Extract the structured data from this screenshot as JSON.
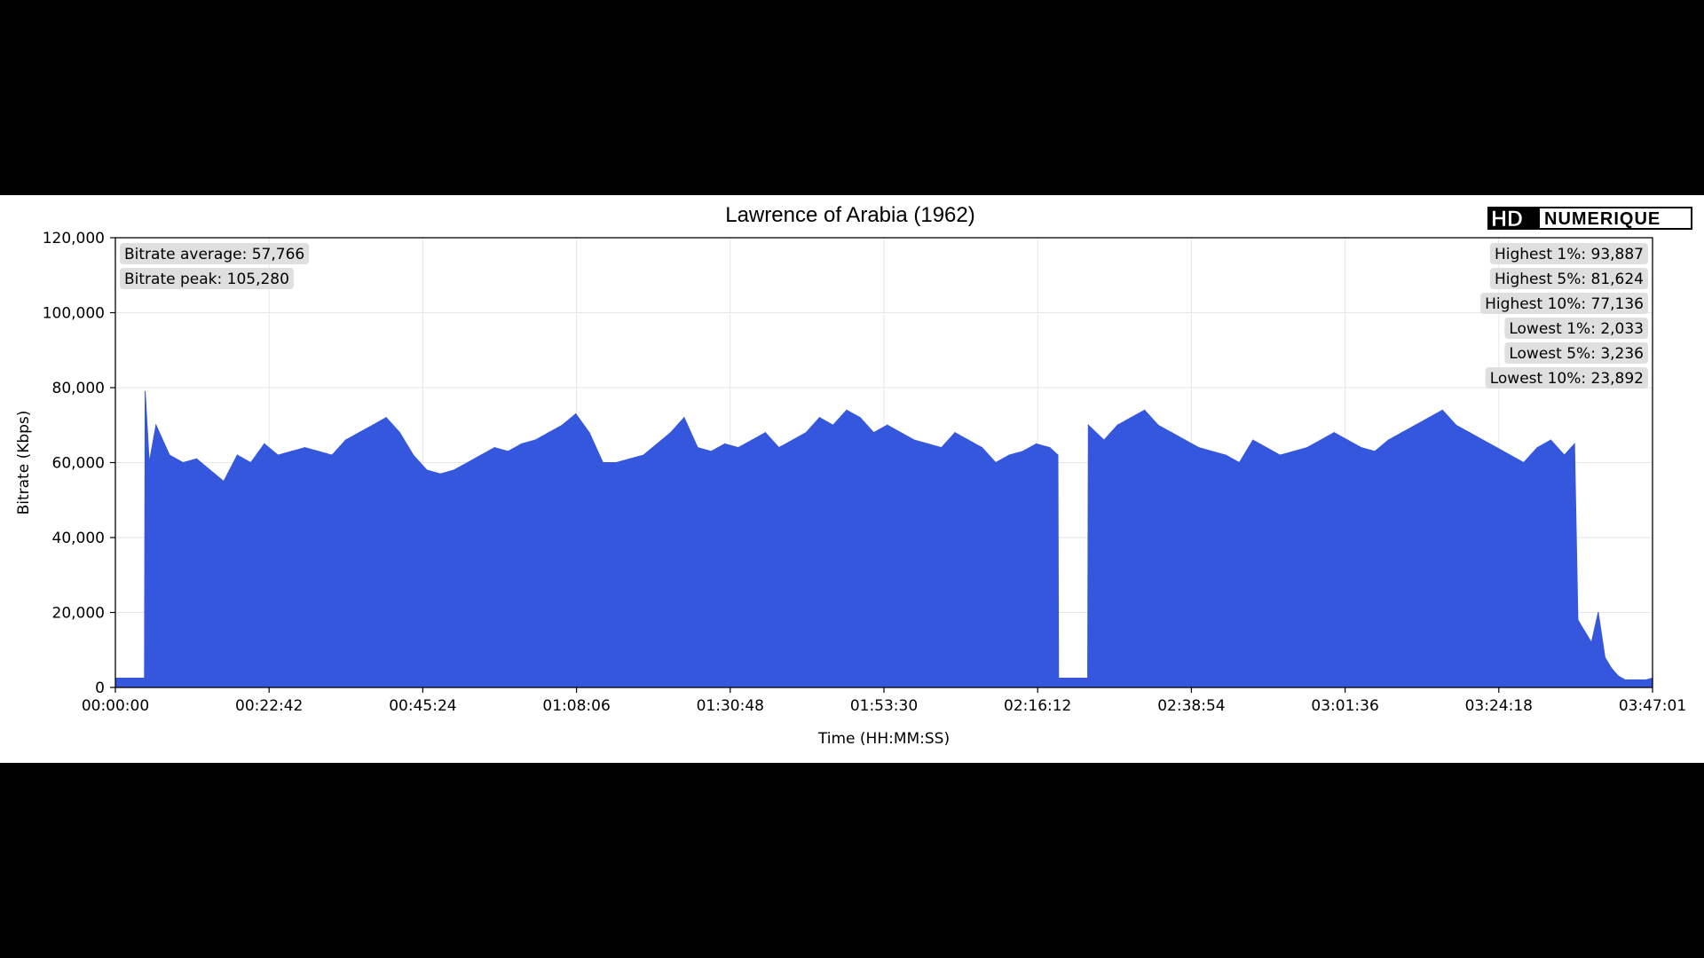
{
  "chart_data": {
    "type": "area",
    "title": "Lawrence of Arabia (1962)",
    "xlabel": "Time (HH:MM:SS)",
    "ylabel": "Bitrate (Kbps)",
    "x_unit": "minutes",
    "xlim": [
      0,
      227.02
    ],
    "ylim": [
      0,
      120000
    ],
    "x_ticks": [
      "00:00:00",
      "00:22:42",
      "00:45:24",
      "01:08:06",
      "01:30:48",
      "01:53:30",
      "02:16:12",
      "02:38:54",
      "03:01:36",
      "03:24:18",
      "03:47:01"
    ],
    "y_ticks": [
      "0",
      "20,000",
      "40,000",
      "60,000",
      "80,000",
      "100,000",
      "120,000"
    ],
    "grid": true,
    "series_color": "#3557dd",
    "series": [
      {
        "x": [
          0,
          4.3,
          4.4,
          5,
          6,
          8,
          10,
          12,
          14,
          16,
          18,
          20,
          22,
          24,
          26,
          28,
          30,
          32,
          34,
          36,
          38,
          40,
          42,
          44,
          46,
          48,
          50,
          52,
          54,
          56,
          58,
          60,
          62,
          64,
          66,
          68,
          70,
          72,
          74,
          76,
          78,
          80,
          82,
          84,
          86,
          88,
          90,
          92,
          94,
          96,
          98,
          100,
          102,
          104,
          106,
          108,
          110,
          112,
          114,
          116,
          118,
          120,
          122,
          124,
          126,
          128,
          130,
          132,
          134,
          136,
          138,
          139.2,
          139.3,
          143.6,
          143.7,
          146,
          148,
          150,
          152,
          154,
          156,
          158,
          160,
          162,
          164,
          166,
          168,
          170,
          172,
          174,
          176,
          178,
          180,
          182,
          184,
          186,
          188,
          190,
          192,
          194,
          196,
          198,
          200,
          202,
          204,
          206,
          208,
          210,
          212,
          214,
          215.5,
          216,
          217,
          218,
          219,
          220,
          221,
          222,
          223,
          224,
          225,
          226,
          227.02
        ],
        "y": [
          2500,
          2500,
          79000,
          60000,
          70000,
          62000,
          60000,
          61000,
          58000,
          55000,
          62000,
          60000,
          65000,
          62000,
          63000,
          64000,
          63000,
          62000,
          66000,
          68000,
          70000,
          72000,
          68000,
          62000,
          58000,
          57000,
          58000,
          60000,
          62000,
          64000,
          63000,
          65000,
          66000,
          68000,
          70000,
          73000,
          68000,
          60000,
          60000,
          61000,
          62000,
          65000,
          68000,
          72000,
          64000,
          63000,
          65000,
          64000,
          66000,
          68000,
          64000,
          66000,
          68000,
          72000,
          70000,
          74000,
          72000,
          68000,
          70000,
          68000,
          66000,
          65000,
          64000,
          68000,
          66000,
          64000,
          60000,
          62000,
          63000,
          65000,
          64000,
          62000,
          2500,
          2500,
          70000,
          66000,
          70000,
          72000,
          74000,
          70000,
          68000,
          66000,
          64000,
          63000,
          62000,
          60000,
          66000,
          64000,
          62000,
          63000,
          64000,
          66000,
          68000,
          66000,
          64000,
          63000,
          66000,
          68000,
          70000,
          72000,
          74000,
          70000,
          68000,
          66000,
          64000,
          62000,
          60000,
          64000,
          66000,
          62000,
          65000,
          18000,
          15000,
          12000,
          20000,
          8000,
          5000,
          3000,
          2000,
          2000,
          2000,
          2000,
          2500
        ]
      }
    ],
    "stats_left": [
      "Bitrate average: 57,766",
      "Bitrate peak: 105,280"
    ],
    "stats_right": [
      "Highest 1%: 93,887",
      "Highest 5%: 81,624",
      "Highest 10%: 77,136",
      "Lowest 1%: 2,033",
      "Lowest 5%: 3,236",
      "Lowest 10%: 23,892"
    ]
  },
  "logo": {
    "text_hd": "HD",
    "text_num": "NUMERIQUE"
  }
}
